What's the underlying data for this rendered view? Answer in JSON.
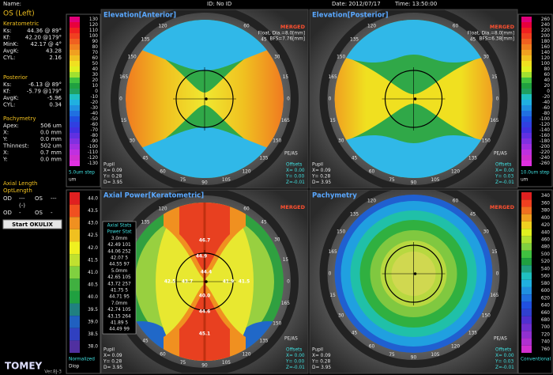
{
  "header": {
    "name": "Name:",
    "id": "ID: No ID",
    "date": "Date: 2012/07/17",
    "time": "Time: 13:50:00"
  },
  "left": {
    "eye": "OS (Left)",
    "sections": [
      {
        "heading": "Keratometric",
        "rows": [
          [
            "Ks:",
            "44.36 @ 89°"
          ],
          [
            "Kf:",
            "42.20 @179°"
          ],
          [
            "MinK:",
            "42.17 @ 4°"
          ],
          [
            "AvgK:",
            "43.28"
          ],
          [
            "CYL:",
            "2.16"
          ]
        ]
      },
      {
        "heading": "Posterior",
        "rows": [
          [
            "Ks:",
            "-6.13 @ 89°"
          ],
          [
            "Kf:",
            "-5.79 @179°"
          ],
          [
            "AvgK:",
            "-5.96"
          ],
          [
            "CYL:",
            "0.34"
          ]
        ]
      },
      {
        "heading": "Pachymetry",
        "rows": [
          [
            "Apex:",
            "506 um"
          ],
          [
            "X:",
            "0.0 mm"
          ],
          [
            "Y:",
            "0.0 mm"
          ],
          [
            "Thinnest:",
            "502 um"
          ],
          [
            "X:",
            "0.7 mm"
          ],
          [
            "Y:",
            "0.0 mm"
          ]
        ]
      }
    ],
    "axial_heading": "Axial Length",
    "opt_heading": "OptLength",
    "axial_rows": [
      [
        "OD",
        "---",
        "OS",
        "---"
      ],
      [
        "(-)"
      ],
      [
        "OD",
        "-",
        "OS",
        "-"
      ]
    ],
    "button": "Start OKULIX",
    "logo": "TOMEY",
    "version": "Ver.8J-3"
  },
  "scales": [
    {
      "values": [
        130,
        120,
        110,
        100,
        90,
        80,
        70,
        60,
        50,
        40,
        30,
        20,
        10,
        0,
        -10,
        -20,
        -30,
        -40,
        -50,
        -60,
        -70,
        -80,
        -90,
        -100,
        -110,
        -120,
        -130
      ],
      "colors": [
        "#e0007a",
        "#e8003c",
        "#f02020",
        "#f04020",
        "#f06020",
        "#f08020",
        "#f0a020",
        "#f0c020",
        "#f0e020",
        "#e0f020",
        "#a0e030",
        "#40c040",
        "#20a040",
        "#20a060",
        "#20c0c0",
        "#20b0e0",
        "#2090e0",
        "#2070e0",
        "#2050e0",
        "#3040e0",
        "#4030e0",
        "#6030e0",
        "#8030e0",
        "#a030e0",
        "#c030e0",
        "#d030d0",
        "#e030e0"
      ],
      "footer": [
        "5.0um step",
        "um"
      ]
    },
    {
      "values": [
        260,
        240,
        220,
        200,
        180,
        160,
        140,
        120,
        100,
        80,
        60,
        40,
        20,
        0,
        -20,
        -40,
        -60,
        -80,
        -100,
        -120,
        -140,
        -160,
        -180,
        -200,
        -220,
        -240,
        -260
      ],
      "colors": [
        "#e0007a",
        "#e8003c",
        "#f02020",
        "#f04020",
        "#f06020",
        "#f08020",
        "#f0a020",
        "#f0c020",
        "#f0e020",
        "#e0f020",
        "#a0e030",
        "#40c040",
        "#20a040",
        "#20a060",
        "#20c0c0",
        "#20b0e0",
        "#2090e0",
        "#2070e0",
        "#2050e0",
        "#3040e0",
        "#4030e0",
        "#6030e0",
        "#8030e0",
        "#a030e0",
        "#c030e0",
        "#d030d0",
        "#e030e0"
      ],
      "footer": [
        "10.0um step",
        "um"
      ]
    },
    {
      "values": [
        {
          "value": 44,
          "label": "44.0"
        },
        43.5,
        {
          "value": 43,
          "label": "43.0"
        },
        42.5,
        {
          "value": 42,
          "label": "42.0"
        },
        41.5,
        {
          "value": 41,
          "label": "41.0"
        },
        40.5,
        {
          "value": 40,
          "label": "40.0"
        },
        39.5,
        {
          "value": 39,
          "label": "39.0"
        },
        38.5,
        {
          "value": 38,
          "label": "38.0"
        }
      ],
      "colors": [
        "#e02020",
        "#f05020",
        "#f09020",
        "#f0c020",
        "#f0f020",
        "#c0e030",
        "#80d040",
        "#40b040",
        "#20a040",
        "#208080",
        "#2060c0",
        "#3040c0",
        "#5030a0"
      ],
      "footer": [
        "Normalized",
        "Diop"
      ]
    },
    {
      "values": [
        340,
        360,
        380,
        400,
        420,
        440,
        460,
        480,
        500,
        520,
        540,
        560,
        580,
        600,
        620,
        640,
        660,
        680,
        700,
        720,
        740,
        760
      ],
      "colors": [
        "#e02020",
        "#f04020",
        "#f07020",
        "#f0a020",
        "#f0d020",
        "#e0f020",
        "#b0e030",
        "#80d040",
        "#40c040",
        "#20a040",
        "#20a080",
        "#20c0c0",
        "#20b0e0",
        "#2090e0",
        "#2070e0",
        "#2050e0",
        "#3040d0",
        "#5030d0",
        "#7030d0",
        "#9030d0",
        "#b030d0",
        "#d030d0"
      ],
      "footer": [
        "Conventional"
      ]
    }
  ],
  "angle_labels": [
    "0",
    "15",
    "30",
    "45",
    "60",
    "75",
    "90",
    "105",
    "120",
    "135",
    "150",
    "165"
  ],
  "maps": [
    {
      "title": "Elevation[Anterior]",
      "merged": "MERGED",
      "fit": [
        "Float, Dia.=8.0[mm]",
        "BFS=7.76[mm]"
      ],
      "tag": "PE/AS",
      "pupil": [
        "Pupil",
        "X= 0.09",
        "Y= 0.28",
        "D= 3.95"
      ],
      "offsets": [
        "Offsets",
        "X= 0.00",
        "Y= 0.00",
        "Z=-0.01"
      ]
    },
    {
      "title": "Elevation[Posterior]",
      "merged": "MERGED",
      "fit": [
        "Float, Dia.=8.0[mm]",
        "BFS=6.38[mm]"
      ],
      "tag": "PE/AS",
      "pupil": [
        "Pupil",
        "X= 0.09",
        "Y= 0.28",
        "D= 3.95"
      ],
      "offsets": [
        "Offsets",
        "X= 0.00",
        "Y= 0.03",
        "Z=-0.01"
      ]
    },
    {
      "title": "Axial Power[Keratometric]",
      "merged": "MERGED",
      "tag": "PE/AS",
      "pupil": [
        "Pupil",
        "X= 0.09",
        "Y= 0.28",
        "D= 3.95"
      ],
      "offsets": [
        "Offsets",
        "X= 0.00",
        "Y= 0.00",
        "Z=-0.01"
      ],
      "readings": [
        "46.7",
        "44.9",
        "44.4",
        "43.7",
        "42.5",
        "41.9",
        "41.5",
        "40.0",
        "44.6",
        "45.1"
      ],
      "stats": [
        "Axial Stats",
        "Power Stat",
        "3.0mm",
        "42.49 101",
        "44.06 252",
        "42.07 5",
        "44.55 97",
        "5.0mm",
        "42.65 105",
        "43.72 257",
        "41.75 5",
        "44.71 95",
        "7.0mm",
        "42.74 105",
        "43.15 264",
        "41.89 5",
        "44.49 99"
      ]
    },
    {
      "title": "Pachymetry",
      "merged": "MERGED",
      "tag": "PE/AS",
      "pupil": [
        "Pupil",
        "X= 0.09",
        "Y= 0.28",
        "D= 3.95"
      ],
      "offsets": [
        "Offsets",
        "X= 0.00",
        "Y= 0.03",
        "Z=-0.01"
      ]
    }
  ]
}
